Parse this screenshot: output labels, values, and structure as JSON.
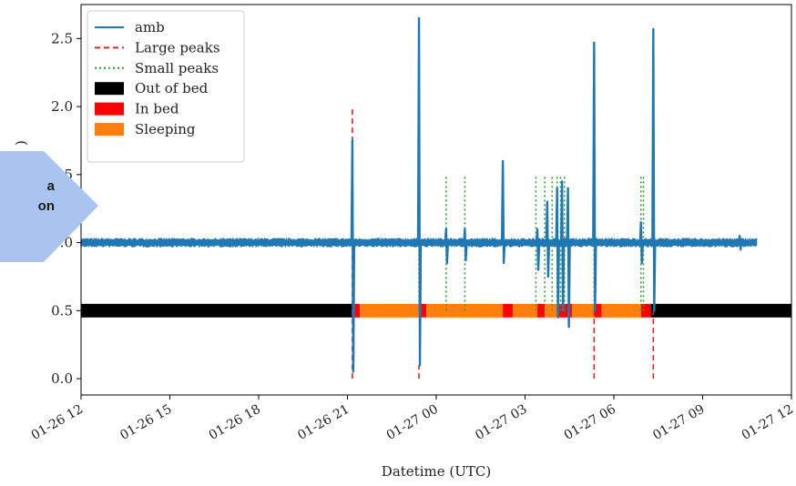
{
  "chart_data": {
    "type": "line",
    "title": "",
    "xlabel": "Datetime (UTC)",
    "ylabel": "",
    "ylabel_visible_fragment": ")",
    "x_range": [
      "2024-01-26T12:00",
      "2024-01-27T12:00"
    ],
    "x_ticks": [
      {
        "t": "2024-01-26T12:00",
        "label": "01-26 12"
      },
      {
        "t": "2024-01-26T15:00",
        "label": "01-26 15"
      },
      {
        "t": "2024-01-26T18:00",
        "label": "01-26 18"
      },
      {
        "t": "2024-01-26T21:00",
        "label": "01-26 21"
      },
      {
        "t": "2024-01-27T00:00",
        "label": "01-27 00"
      },
      {
        "t": "2024-01-27T03:00",
        "label": "01-27 03"
      },
      {
        "t": "2024-01-27T06:00",
        "label": "01-27 06"
      },
      {
        "t": "2024-01-27T09:00",
        "label": "01-27 09"
      },
      {
        "t": "2024-01-27T12:00",
        "label": "01-27 12"
      }
    ],
    "y_range": [
      -0.12,
      2.75
    ],
    "y_ticks": [
      {
        "v": 0.0,
        "label": "0.0"
      },
      {
        "v": 0.5,
        "label": "0.5"
      },
      {
        "v": 1.0,
        "label": "1.0"
      },
      {
        "v": 1.5,
        "label": "1.5"
      },
      {
        "v": 2.0,
        "label": "2.0"
      },
      {
        "v": 2.5,
        "label": "2.5"
      }
    ],
    "legend_position": "top-left",
    "legend": [
      {
        "label": "amb",
        "kind": "line",
        "color": "#1f77b4"
      },
      {
        "label": "Large peaks",
        "kind": "dashed",
        "color": "#d62728"
      },
      {
        "label": "Small peaks",
        "kind": "dotted",
        "color": "#2ca02c"
      },
      {
        "label": "Out of bed",
        "kind": "patch",
        "color": "#000000"
      },
      {
        "label": "In bed",
        "kind": "patch",
        "color": "#ff0000"
      },
      {
        "label": "Sleeping",
        "kind": "patch",
        "color": "#ff7f0e"
      }
    ],
    "amb_series": {
      "name": "amb",
      "baseline": 1.0,
      "noise": 0.035,
      "start": "2024-01-26T12:00",
      "end": "2024-01-27T10:50",
      "spikes": [
        {
          "t": "2024-01-26T21:10",
          "max": 1.75,
          "min": 0.05
        },
        {
          "t": "2024-01-26T23:25",
          "max": 2.65,
          "min": 0.1
        },
        {
          "t": "2024-01-27T00:20",
          "max": 1.1,
          "min": 0.85
        },
        {
          "t": "2024-01-27T00:58",
          "max": 1.1,
          "min": 0.87
        },
        {
          "t": "2024-01-27T02:15",
          "max": 1.6,
          "min": 0.85
        },
        {
          "t": "2024-01-27T03:25",
          "max": 1.1,
          "min": 0.8
        },
        {
          "t": "2024-01-27T03:45",
          "max": 1.3,
          "min": 0.75
        },
        {
          "t": "2024-01-27T04:05",
          "max": 1.4,
          "min": 0.45
        },
        {
          "t": "2024-01-27T04:15",
          "max": 1.45,
          "min": 0.5
        },
        {
          "t": "2024-01-27T04:27",
          "max": 1.4,
          "min": 0.38
        },
        {
          "t": "2024-01-27T05:20",
          "max": 2.47,
          "min": 0.5
        },
        {
          "t": "2024-01-27T06:55",
          "max": 1.15,
          "min": 0.85
        },
        {
          "t": "2024-01-27T07:20",
          "max": 2.57,
          "min": 0.5
        },
        {
          "t": "2024-01-27T10:15",
          "max": 1.05,
          "min": 0.95
        }
      ]
    },
    "large_peaks": [
      {
        "t": "2024-01-26T21:10",
        "bottom": 0.0,
        "top": 2.0
      },
      {
        "t": "2024-01-26T23:25",
        "bottom": 0.0,
        "top": 0.1
      },
      {
        "t": "2024-01-27T05:20",
        "bottom": 0.0,
        "top": 0.5
      },
      {
        "t": "2024-01-27T07:20",
        "bottom": 0.0,
        "top": 0.5
      }
    ],
    "small_peaks": [
      {
        "t": "2024-01-26T23:25",
        "bottom": 0.5,
        "top": 1.5
      },
      {
        "t": "2024-01-27T00:20",
        "bottom": 0.5,
        "top": 1.5
      },
      {
        "t": "2024-01-27T00:58",
        "bottom": 0.5,
        "top": 1.5
      },
      {
        "t": "2024-01-27T03:22",
        "bottom": 0.5,
        "top": 1.5
      },
      {
        "t": "2024-01-27T03:40",
        "bottom": 0.5,
        "top": 1.5
      },
      {
        "t": "2024-01-27T03:55",
        "bottom": 0.5,
        "top": 1.5
      },
      {
        "t": "2024-01-27T04:05",
        "bottom": 0.5,
        "top": 1.5
      },
      {
        "t": "2024-01-27T04:12",
        "bottom": 0.5,
        "top": 1.5
      },
      {
        "t": "2024-01-27T04:20",
        "bottom": 0.5,
        "top": 1.5
      },
      {
        "t": "2024-01-27T05:20",
        "bottom": 0.5,
        "top": 1.5
      },
      {
        "t": "2024-01-27T06:55",
        "bottom": 0.5,
        "top": 1.5
      },
      {
        "t": "2024-01-27T07:00",
        "bottom": 0.5,
        "top": 1.5
      }
    ],
    "state_band": {
      "y_center": 0.5,
      "height": 0.1,
      "segments": [
        {
          "start": "2024-01-26T12:00",
          "end": "2024-01-26T21:10",
          "state": "Out of bed",
          "color": "#000000"
        },
        {
          "start": "2024-01-26T21:10",
          "end": "2024-01-26T21:25",
          "state": "In bed",
          "color": "#ff0000"
        },
        {
          "start": "2024-01-26T21:25",
          "end": "2024-01-26T23:25",
          "state": "Sleeping",
          "color": "#ff7f0e"
        },
        {
          "start": "2024-01-26T23:25",
          "end": "2024-01-26T23:40",
          "state": "In bed",
          "color": "#ff0000"
        },
        {
          "start": "2024-01-26T23:40",
          "end": "2024-01-27T02:15",
          "state": "Sleeping",
          "color": "#ff7f0e"
        },
        {
          "start": "2024-01-27T02:15",
          "end": "2024-01-27T02:35",
          "state": "In bed",
          "color": "#ff0000"
        },
        {
          "start": "2024-01-27T02:35",
          "end": "2024-01-27T03:25",
          "state": "Sleeping",
          "color": "#ff7f0e"
        },
        {
          "start": "2024-01-27T03:25",
          "end": "2024-01-27T03:40",
          "state": "In bed",
          "color": "#ff0000"
        },
        {
          "start": "2024-01-27T03:40",
          "end": "2024-01-27T04:05",
          "state": "Sleeping",
          "color": "#ff7f0e"
        },
        {
          "start": "2024-01-27T04:05",
          "end": "2024-01-27T04:35",
          "state": "In bed",
          "color": "#ff0000"
        },
        {
          "start": "2024-01-27T04:35",
          "end": "2024-01-27T05:20",
          "state": "Sleeping",
          "color": "#ff7f0e"
        },
        {
          "start": "2024-01-27T05:20",
          "end": "2024-01-27T05:35",
          "state": "In bed",
          "color": "#ff0000"
        },
        {
          "start": "2024-01-27T05:35",
          "end": "2024-01-27T06:55",
          "state": "Sleeping",
          "color": "#ff7f0e"
        },
        {
          "start": "2024-01-27T06:55",
          "end": "2024-01-27T07:15",
          "state": "In bed",
          "color": "#ff0000"
        },
        {
          "start": "2024-01-27T07:15",
          "end": "2024-01-27T12:00",
          "state": "Out of bed",
          "color": "#000000"
        }
      ]
    }
  },
  "overlay": {
    "line1": "a",
    "line2": "on",
    "color": "#a9c4ef"
  }
}
